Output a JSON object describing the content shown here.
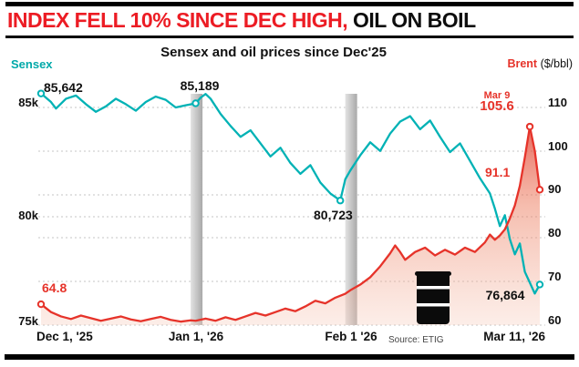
{
  "header": {
    "title_red": "INDEX FELL 10% SINCE DEC HIGH,",
    "title_black": " OIL ON BOIL"
  },
  "chart": {
    "title": "Sensex and oil prices since Dec'25",
    "left_axis_label": "Sensex",
    "right_axis_label_bold": "Brent",
    "right_axis_label_unit": " ($/bbl)",
    "left_ticks": [
      "85k",
      "80k",
      "75k"
    ],
    "right_ticks": [
      "110",
      "100",
      "90",
      "80",
      "70",
      "60"
    ],
    "x_ticks": [
      "Dec 1, '25",
      "Jan 1, '26",
      "Feb 1 '26",
      "Mar 11, '26"
    ],
    "source": "Source: ETIG",
    "annotations": {
      "sensex_start": "85,642",
      "sensex_jan": "85,189",
      "sensex_feb": "80,723",
      "sensex_end": "76,864",
      "brent_start": "64.8",
      "brent_peak_date": "Mar 9",
      "brent_peak": "105.6",
      "brent_end": "91.1"
    },
    "icons": {
      "oil_barrel": "oil-barrel-icon"
    }
  },
  "colors": {
    "headline_red": "#ec1c24",
    "sensex_teal": "#00b2b5",
    "brent_red": "#e6332a",
    "band_gray": "#bdbdbd"
  },
  "chart_data": {
    "type": "line",
    "title": "Sensex and oil prices since Dec'25",
    "x_range_days": [
      0,
      100
    ],
    "x_tick_days": [
      0,
      31,
      62,
      100
    ],
    "x_tick_labels": [
      "Dec 1, '25",
      "Jan 1, '26",
      "Feb 1 '26",
      "Mar 11, '26"
    ],
    "highlight_band_days": [
      31,
      62
    ],
    "grid": true,
    "legend_position": "top",
    "left_axis": {
      "label": "Sensex",
      "range": [
        75000,
        85000
      ],
      "tick_values": [
        85000,
        80000,
        75000
      ],
      "tick_labels": [
        "85k",
        "80k",
        "75k"
      ]
    },
    "right_axis": {
      "label": "Brent ($/bbl)",
      "range": [
        60,
        110
      ],
      "tick_values": [
        110,
        100,
        90,
        80,
        70,
        60
      ]
    },
    "series": [
      {
        "name": "Sensex",
        "axis": "left",
        "color": "#00b2b5",
        "area": false,
        "points": [
          [
            0,
            85642
          ],
          [
            2,
            85250
          ],
          [
            3,
            84950
          ],
          [
            5,
            85400
          ],
          [
            7,
            85550
          ],
          [
            9,
            85150
          ],
          [
            11,
            84800
          ],
          [
            13,
            85050
          ],
          [
            15,
            85400
          ],
          [
            17,
            85150
          ],
          [
            19,
            84850
          ],
          [
            21,
            85250
          ],
          [
            23,
            85500
          ],
          [
            25,
            85350
          ],
          [
            27,
            85000
          ],
          [
            29,
            85100
          ],
          [
            31,
            85189
          ],
          [
            32,
            85450
          ],
          [
            33,
            85620
          ],
          [
            34,
            85400
          ],
          [
            36,
            84700
          ],
          [
            38,
            84150
          ],
          [
            40,
            83650
          ],
          [
            42,
            83950
          ],
          [
            44,
            83350
          ],
          [
            46,
            82750
          ],
          [
            48,
            83150
          ],
          [
            50,
            82450
          ],
          [
            52,
            81950
          ],
          [
            54,
            82350
          ],
          [
            56,
            81550
          ],
          [
            58,
            81050
          ],
          [
            60,
            80723
          ],
          [
            61,
            81700
          ],
          [
            62,
            82100
          ],
          [
            64,
            82800
          ],
          [
            66,
            83400
          ],
          [
            68,
            83000
          ],
          [
            70,
            83800
          ],
          [
            72,
            84350
          ],
          [
            74,
            84600
          ],
          [
            76,
            84000
          ],
          [
            78,
            84400
          ],
          [
            80,
            83650
          ],
          [
            82,
            82950
          ],
          [
            84,
            83350
          ],
          [
            86,
            82550
          ],
          [
            88,
            81750
          ],
          [
            90,
            81050
          ],
          [
            91,
            80350
          ],
          [
            92,
            79550
          ],
          [
            93,
            80050
          ],
          [
            94,
            78950
          ],
          [
            95,
            78250
          ],
          [
            96,
            78750
          ],
          [
            97,
            77450
          ],
          [
            98,
            76950
          ],
          [
            99,
            76450
          ],
          [
            100,
            76864
          ]
        ]
      },
      {
        "name": "Brent",
        "axis": "right",
        "color": "#e6332a",
        "area": true,
        "points": [
          [
            0,
            64.8
          ],
          [
            2,
            63.0
          ],
          [
            4,
            62.0
          ],
          [
            6,
            61.4
          ],
          [
            8,
            62.2
          ],
          [
            10,
            61.6
          ],
          [
            12,
            61.0
          ],
          [
            14,
            61.5
          ],
          [
            16,
            62.0
          ],
          [
            18,
            61.3
          ],
          [
            20,
            60.9
          ],
          [
            22,
            61.4
          ],
          [
            24,
            61.9
          ],
          [
            26,
            61.2
          ],
          [
            28,
            60.8
          ],
          [
            30,
            61.1
          ],
          [
            31,
            61.0
          ],
          [
            33,
            61.5
          ],
          [
            35,
            61.0
          ],
          [
            37,
            61.8
          ],
          [
            39,
            61.2
          ],
          [
            41,
            62.0
          ],
          [
            43,
            62.8
          ],
          [
            45,
            62.2
          ],
          [
            47,
            63.0
          ],
          [
            49,
            63.8
          ],
          [
            51,
            63.2
          ],
          [
            53,
            64.3
          ],
          [
            55,
            65.6
          ],
          [
            57,
            65.0
          ],
          [
            59,
            66.3
          ],
          [
            61,
            67.2
          ],
          [
            62,
            68.0
          ],
          [
            64,
            69.3
          ],
          [
            66,
            71.0
          ],
          [
            68,
            73.5
          ],
          [
            70,
            76.5
          ],
          [
            71,
            78.3
          ],
          [
            72,
            76.8
          ],
          [
            73,
            75.0
          ],
          [
            75,
            76.8
          ],
          [
            77,
            77.8
          ],
          [
            79,
            76.0
          ],
          [
            81,
            77.3
          ],
          [
            83,
            76.2
          ],
          [
            85,
            77.8
          ],
          [
            87,
            76.8
          ],
          [
            89,
            79.0
          ],
          [
            90,
            80.8
          ],
          [
            91,
            79.6
          ],
          [
            92,
            80.6
          ],
          [
            93,
            82.0
          ],
          [
            94,
            84.5
          ],
          [
            95,
            87.5
          ],
          [
            96,
            92.0
          ],
          [
            97,
            98.5
          ],
          [
            98,
            105.6
          ],
          [
            99,
            100.0
          ],
          [
            100,
            91.1
          ]
        ]
      }
    ],
    "markers": [
      {
        "axis": "left",
        "day": 0,
        "value": 85642,
        "label": "85,642"
      },
      {
        "axis": "left",
        "day": 31,
        "value": 85189,
        "label": "85,189"
      },
      {
        "axis": "left",
        "day": 60,
        "value": 80723,
        "label": "80,723"
      },
      {
        "axis": "left",
        "day": 100,
        "value": 76864,
        "label": "76,864"
      },
      {
        "axis": "right",
        "day": 0,
        "value": 64.8,
        "label": "64.8"
      },
      {
        "axis": "right",
        "day": 98,
        "value": 105.6,
        "label": "105.6",
        "date_label": "Mar 9"
      },
      {
        "axis": "right",
        "day": 100,
        "value": 91.1,
        "label": "91.1"
      }
    ]
  }
}
